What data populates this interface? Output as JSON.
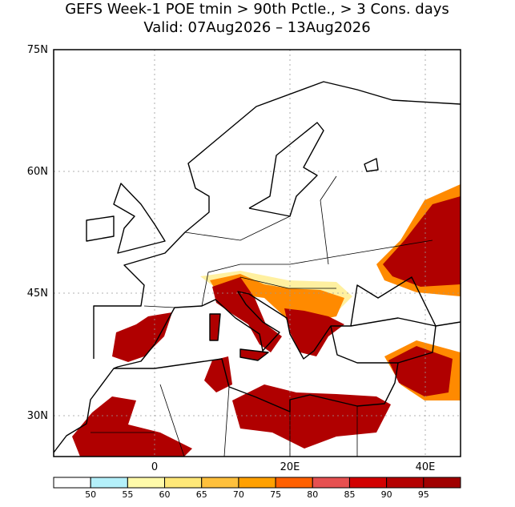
{
  "header": {
    "title": "GEFS Week-1 POE tmin > 90th Pctle., > 3 Cons. days",
    "subtitle": "Valid: 07Aug2026 – 13Aug2026"
  },
  "map": {
    "lat_labels": [
      "75N",
      "60N",
      "45N",
      "30N"
    ],
    "lon_labels": [
      "0",
      "20E",
      "40E"
    ]
  },
  "colorbar": {
    "levels": [
      50,
      55,
      60,
      65,
      70,
      75,
      80,
      85,
      90,
      95
    ],
    "colors": [
      "#ffffff",
      "#b4f0fa",
      "#fffaaa",
      "#ffe878",
      "#ffc03c",
      "#ffa000",
      "#ff6000",
      "#e65050",
      "#d20000",
      "#b40000",
      "#a00000"
    ]
  }
}
